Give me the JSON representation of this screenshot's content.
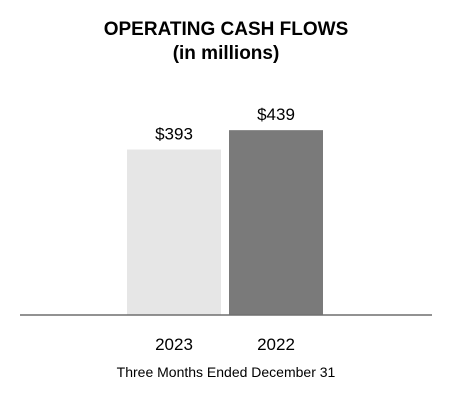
{
  "chart_data": {
    "type": "bar",
    "title": "OPERATING CASH FLOWS",
    "subtitle": "(in millions)",
    "categories": [
      "2023",
      "2022"
    ],
    "values": [
      393,
      439
    ],
    "value_labels": [
      "$393",
      "$439"
    ],
    "bar_colors": [
      "#e6e6e6",
      "#7a7a7a"
    ],
    "xlabel": "Three Months Ended December 31",
    "ylabel": "",
    "ylim": [
      0,
      475
    ],
    "grid": false,
    "legend": "none"
  }
}
